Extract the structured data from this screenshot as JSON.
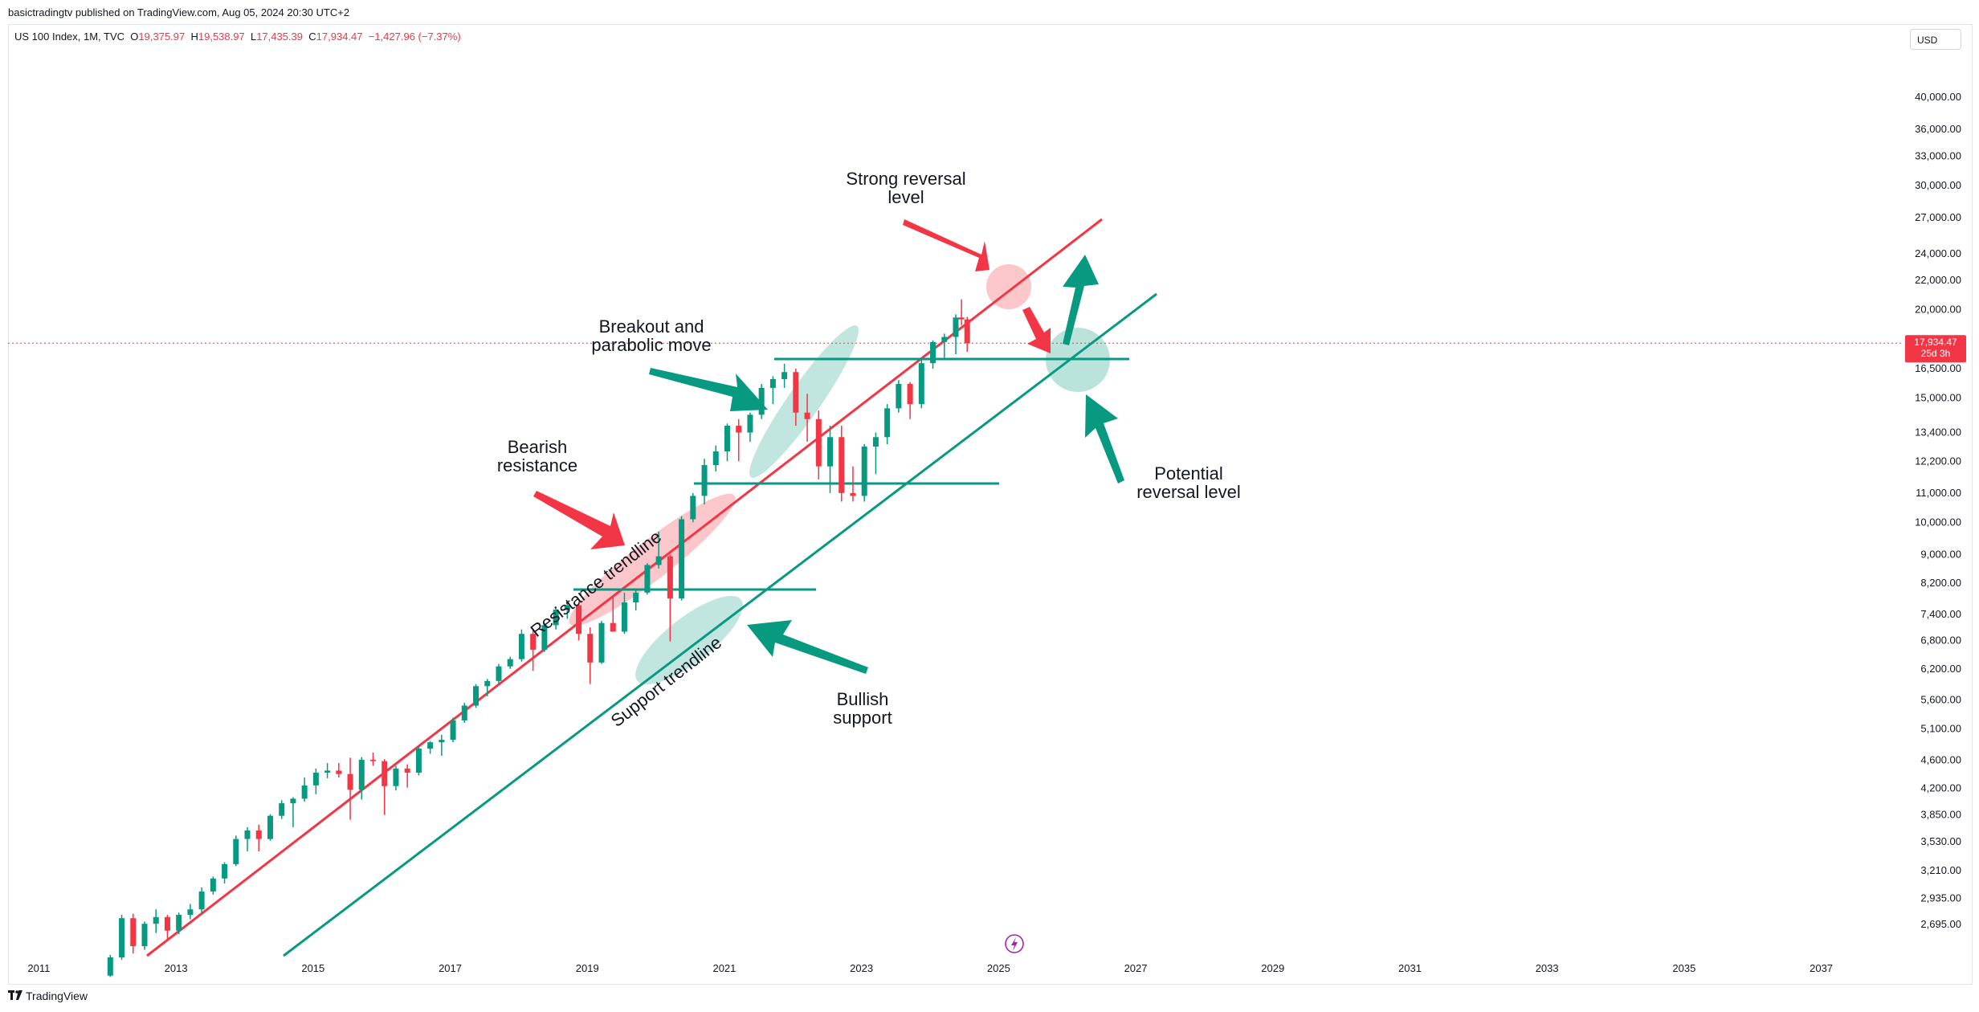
{
  "header": {
    "publisher": "basictradingtv published on TradingView.com, Aug 05, 2024 20:30 UTC+2"
  },
  "legend": {
    "symbol": "US 100 Index, 1M, TVC",
    "o_label": "O",
    "o": "19,375.97",
    "h_label": "H",
    "h": "19,538.97",
    "l_label": "L",
    "l": "17,435.39",
    "c_label": "C",
    "c": "17,934.47",
    "change": "−1,427.96 (−7.37%)"
  },
  "currency": "USD",
  "price_badge": {
    "price": "17,934.47",
    "countdown": "25d 3h"
  },
  "footer": {
    "brand": "TradingView",
    "logo": "tradingview-logo-icon"
  },
  "colors": {
    "up": "#089981",
    "down": "#f23645",
    "resistance": "#f23645",
    "support": "#089981"
  },
  "chart_data": {
    "type": "candlestick",
    "title": "US 100 Index, 1M, TVC",
    "y_scale": "log",
    "ylim": [
      2550,
      45000
    ],
    "xlim": [
      2010.55,
      2038.2
    ],
    "x_ticks": [
      "2011",
      "2013",
      "2015",
      "2017",
      "2019",
      "2021",
      "2023",
      "2025",
      "2027",
      "2029",
      "2031",
      "2033",
      "2035",
      "2037"
    ],
    "y_ticks": [
      "40,000.00",
      "36,000.00",
      "33,000.00",
      "30,000.00",
      "27,000.00",
      "24,000.00",
      "22,000.00",
      "20,000.00",
      "16,500.00",
      "15,000.00",
      "13,400.00",
      "12,200.00",
      "11,000.00",
      "10,000.00",
      "9,000.00",
      "8,200.00",
      "7,400.00",
      "6,800.00",
      "6,200.00",
      "5,600.00",
      "5,100.00",
      "4,600.00",
      "4,200.00",
      "3,850.00",
      "3,530.00",
      "3,210.00",
      "2,935.00",
      "2,695.00"
    ],
    "y_tick_values": [
      40000,
      36000,
      33000,
      30000,
      27000,
      24000,
      22000,
      20000,
      16500,
      15000,
      13400,
      12200,
      11000,
      10000,
      9000,
      8200,
      7400,
      6800,
      6200,
      5600,
      5100,
      4600,
      4200,
      3850,
      3530,
      3210,
      2935,
      2695
    ],
    "last_close": 17934.47,
    "series": [
      {
        "t": "2012-01",
        "o": 2280,
        "h": 2440,
        "l": 2270,
        "c": 2420
      },
      {
        "t": "2012-03",
        "o": 2420,
        "h": 2780,
        "l": 2400,
        "c": 2750
      },
      {
        "t": "2012-05",
        "o": 2750,
        "h": 2790,
        "l": 2450,
        "c": 2510
      },
      {
        "t": "2012-07",
        "o": 2510,
        "h": 2720,
        "l": 2480,
        "c": 2700
      },
      {
        "t": "2012-09",
        "o": 2700,
        "h": 2830,
        "l": 2620,
        "c": 2760
      },
      {
        "t": "2012-11",
        "o": 2760,
        "h": 2780,
        "l": 2560,
        "c": 2640
      },
      {
        "t": "2013-01",
        "o": 2640,
        "h": 2800,
        "l": 2610,
        "c": 2780
      },
      {
        "t": "2013-03",
        "o": 2780,
        "h": 2880,
        "l": 2740,
        "c": 2830
      },
      {
        "t": "2013-05",
        "o": 2830,
        "h": 3040,
        "l": 2790,
        "c": 3000
      },
      {
        "t": "2013-07",
        "o": 3000,
        "h": 3150,
        "l": 2970,
        "c": 3130
      },
      {
        "t": "2013-09",
        "o": 3130,
        "h": 3300,
        "l": 3080,
        "c": 3280
      },
      {
        "t": "2013-11",
        "o": 3280,
        "h": 3600,
        "l": 3260,
        "c": 3560
      },
      {
        "t": "2014-01",
        "o": 3560,
        "h": 3700,
        "l": 3420,
        "c": 3660
      },
      {
        "t": "2014-03",
        "o": 3660,
        "h": 3730,
        "l": 3420,
        "c": 3560
      },
      {
        "t": "2014-05",
        "o": 3560,
        "h": 3860,
        "l": 3540,
        "c": 3840
      },
      {
        "t": "2014-07",
        "o": 3840,
        "h": 4040,
        "l": 3800,
        "c": 4000
      },
      {
        "t": "2014-09",
        "o": 4000,
        "h": 4080,
        "l": 3700,
        "c": 4060
      },
      {
        "t": "2014-11",
        "o": 4060,
        "h": 4350,
        "l": 4020,
        "c": 4240
      },
      {
        "t": "2015-01",
        "o": 4240,
        "h": 4480,
        "l": 4120,
        "c": 4420
      },
      {
        "t": "2015-03",
        "o": 4420,
        "h": 4560,
        "l": 4340,
        "c": 4450
      },
      {
        "t": "2015-05",
        "o": 4450,
        "h": 4560,
        "l": 4350,
        "c": 4400
      },
      {
        "t": "2015-07",
        "o": 4400,
        "h": 4640,
        "l": 3790,
        "c": 4180
      },
      {
        "t": "2015-09",
        "o": 4180,
        "h": 4650,
        "l": 4050,
        "c": 4610
      },
      {
        "t": "2015-11",
        "o": 4610,
        "h": 4720,
        "l": 4520,
        "c": 4590
      },
      {
        "t": "2016-01",
        "o": 4590,
        "h": 4620,
        "l": 3850,
        "c": 4230
      },
      {
        "t": "2016-03",
        "o": 4230,
        "h": 4520,
        "l": 4170,
        "c": 4480
      },
      {
        "t": "2016-05",
        "o": 4480,
        "h": 4540,
        "l": 4210,
        "c": 4420
      },
      {
        "t": "2016-07",
        "o": 4420,
        "h": 4830,
        "l": 4380,
        "c": 4780
      },
      {
        "t": "2016-09",
        "o": 4780,
        "h": 4900,
        "l": 4700,
        "c": 4880
      },
      {
        "t": "2016-11",
        "o": 4880,
        "h": 5000,
        "l": 4670,
        "c": 4920
      },
      {
        "t": "2017-01",
        "o": 4920,
        "h": 5290,
        "l": 4880,
        "c": 5240
      },
      {
        "t": "2017-03",
        "o": 5240,
        "h": 5550,
        "l": 5200,
        "c": 5500
      },
      {
        "t": "2017-05",
        "o": 5500,
        "h": 5900,
        "l": 5460,
        "c": 5860
      },
      {
        "t": "2017-07",
        "o": 5860,
        "h": 6000,
        "l": 5670,
        "c": 5960
      },
      {
        "t": "2017-09",
        "o": 5960,
        "h": 6300,
        "l": 5900,
        "c": 6250
      },
      {
        "t": "2017-11",
        "o": 6250,
        "h": 6450,
        "l": 6200,
        "c": 6400
      },
      {
        "t": "2018-01",
        "o": 6400,
        "h": 7050,
        "l": 6350,
        "c": 6950
      },
      {
        "t": "2018-03",
        "o": 6950,
        "h": 7030,
        "l": 6160,
        "c": 6600
      },
      {
        "t": "2018-05",
        "o": 6600,
        "h": 7200,
        "l": 6550,
        "c": 7150
      },
      {
        "t": "2018-07",
        "o": 7150,
        "h": 7600,
        "l": 7050,
        "c": 7520
      },
      {
        "t": "2018-09",
        "o": 7520,
        "h": 7700,
        "l": 7300,
        "c": 7630
      },
      {
        "t": "2018-11",
        "o": 7630,
        "h": 7700,
        "l": 6800,
        "c": 6950
      },
      {
        "t": "2019-01",
        "o": 6950,
        "h": 7100,
        "l": 5900,
        "c": 6330
      },
      {
        "t": "2019-03",
        "o": 6330,
        "h": 7250,
        "l": 6300,
        "c": 7200
      },
      {
        "t": "2019-05",
        "o": 7200,
        "h": 7850,
        "l": 7100,
        "c": 7000
      },
      {
        "t": "2019-07",
        "o": 7000,
        "h": 7950,
        "l": 6950,
        "c": 7700
      },
      {
        "t": "2019-09",
        "o": 7700,
        "h": 8000,
        "l": 7500,
        "c": 7950
      },
      {
        "t": "2019-11",
        "o": 7950,
        "h": 8750,
        "l": 7900,
        "c": 8700
      },
      {
        "t": "2020-01",
        "o": 8700,
        "h": 9700,
        "l": 8600,
        "c": 8950
      },
      {
        "t": "2020-03",
        "o": 8950,
        "h": 9000,
        "l": 6780,
        "c": 7800
      },
      {
        "t": "2020-05",
        "o": 7800,
        "h": 10200,
        "l": 7750,
        "c": 10100
      },
      {
        "t": "2020-07",
        "o": 10100,
        "h": 11000,
        "l": 10000,
        "c": 10900
      },
      {
        "t": "2020-09",
        "o": 10900,
        "h": 12300,
        "l": 10600,
        "c": 12050
      },
      {
        "t": "2020-11",
        "o": 12050,
        "h": 12850,
        "l": 11800,
        "c": 12600
      },
      {
        "t": "2021-01",
        "o": 12600,
        "h": 13800,
        "l": 12200,
        "c": 13700
      },
      {
        "t": "2021-03",
        "o": 13700,
        "h": 14000,
        "l": 12200,
        "c": 13400
      },
      {
        "t": "2021-05",
        "o": 13400,
        "h": 14300,
        "l": 13000,
        "c": 14200
      },
      {
        "t": "2021-07",
        "o": 14200,
        "h": 15700,
        "l": 14000,
        "c": 15500
      },
      {
        "t": "2021-09",
        "o": 15500,
        "h": 16100,
        "l": 14700,
        "c": 15950
      },
      {
        "t": "2021-11",
        "o": 15950,
        "h": 16770,
        "l": 15500,
        "c": 16320
      },
      {
        "t": "2022-01",
        "o": 16320,
        "h": 16500,
        "l": 13700,
        "c": 14300
      },
      {
        "t": "2022-03",
        "o": 14300,
        "h": 15200,
        "l": 13000,
        "c": 14000
      },
      {
        "t": "2022-05",
        "o": 14000,
        "h": 14400,
        "l": 11500,
        "c": 12000
      },
      {
        "t": "2022-07",
        "o": 12000,
        "h": 13700,
        "l": 11000,
        "c": 13200
      },
      {
        "t": "2022-09",
        "o": 13200,
        "h": 13700,
        "l": 10700,
        "c": 11000
      },
      {
        "t": "2022-11",
        "o": 11000,
        "h": 12000,
        "l": 10700,
        "c": 10900
      },
      {
        "t": "2023-01",
        "o": 10900,
        "h": 12900,
        "l": 10700,
        "c": 12800
      },
      {
        "t": "2023-03",
        "o": 12800,
        "h": 13400,
        "l": 11700,
        "c": 13200
      },
      {
        "t": "2023-05",
        "o": 13200,
        "h": 14700,
        "l": 12900,
        "c": 14500
      },
      {
        "t": "2023-07",
        "o": 14500,
        "h": 15900,
        "l": 14300,
        "c": 15700
      },
      {
        "t": "2023-09",
        "o": 15700,
        "h": 15800,
        "l": 14000,
        "c": 14700
      },
      {
        "t": "2023-11",
        "o": 14700,
        "h": 17000,
        "l": 14500,
        "c": 16800
      },
      {
        "t": "2024-01",
        "o": 16800,
        "h": 18100,
        "l": 16500,
        "c": 18000
      },
      {
        "t": "2024-03",
        "o": 18000,
        "h": 18500,
        "l": 17000,
        "c": 18300
      },
      {
        "t": "2024-05",
        "o": 18300,
        "h": 19700,
        "l": 17300,
        "c": 19500
      },
      {
        "t": "2024-06",
        "o": 19500,
        "h": 20690,
        "l": 19000,
        "c": 19380
      },
      {
        "t": "2024-07",
        "o": 19375.97,
        "h": 19538.97,
        "l": 17435.39,
        "c": 17934.47
      }
    ],
    "drawings": {
      "resistance_trendline": {
        "label": "Resistance trendline",
        "from": [
          "2011.5",
          2300
        ],
        "to": [
          "2025.9",
          24500
        ]
      },
      "support_trendline": {
        "label": "Support trendline",
        "from": [
          "2013.3",
          2300
        ],
        "to": [
          "2026.8",
          19500
        ]
      },
      "horizontal_levels": [
        {
          "value": 16000,
          "from": "2020.8",
          "to": "2026.6"
        },
        {
          "value": 10800,
          "from": "2019.6",
          "to": "2024.4"
        },
        {
          "value": 7750,
          "from": "2017.8",
          "to": "2021.5"
        }
      ]
    },
    "annotations": [
      {
        "lines": [
          "Strong reversal",
          "level"
        ]
      },
      {
        "lines": [
          "Breakout and",
          "parabolic move"
        ]
      },
      {
        "lines": [
          "Bearish",
          "resistance"
        ]
      },
      {
        "lines": [
          "Bullish",
          "support"
        ]
      },
      {
        "lines": [
          "Potential",
          "reversal level"
        ]
      }
    ]
  }
}
